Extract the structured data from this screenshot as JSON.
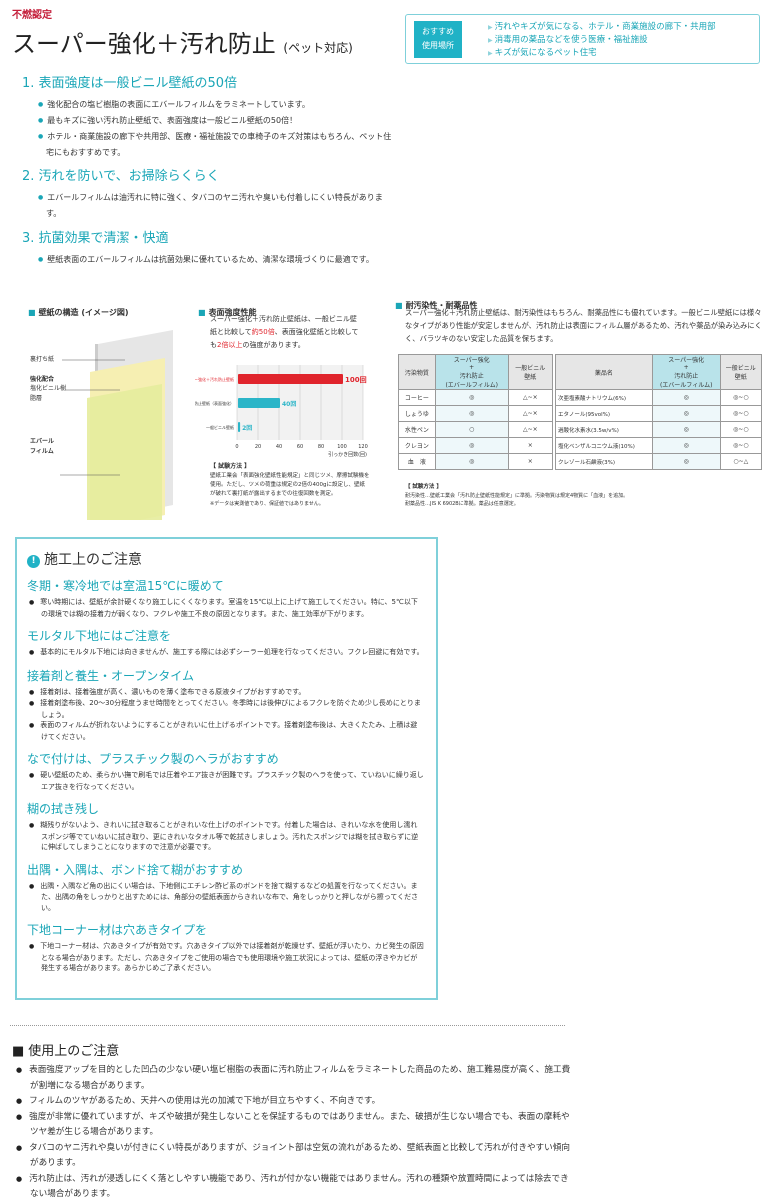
{
  "header": {
    "cert": "不燃認定",
    "title": "スーパー強化＋汚れ防止",
    "title_suffix": "(ペット対応)"
  },
  "recommend": {
    "label_line1": "おすすめ",
    "label_line2": "使用場所",
    "items": [
      "汚れやキズが気になる、ホテル・商業施設の廊下・共用部",
      "消毒用の薬品などを使う医療・福祉施設",
      "キズが気になるペット住宅"
    ]
  },
  "features": [
    {
      "heading": "1.  表面強度は一般ビニル壁紙の50倍",
      "bullets": [
        "強化配合の塩ビ樹脂の表面にエバールフィルムをラミネートしています。",
        "最もキズに強い汚れ防止壁紙で、表面強度は一般ビニル壁紙の50倍！",
        "ホテル・商業施設の廊下や共用部、医療・福祉施設での車椅子のキズ対策はもちろん、ペット住宅にもおすすめです。"
      ]
    },
    {
      "heading": "2.  汚れを防いで、お掃除らくらく",
      "bullets": [
        "エバールフィルムは油汚れに特に強く、タバコのヤニ汚れや臭いも付着しにくい特長があります。"
      ]
    },
    {
      "heading": "3.  抗菌効果で清潔・快適",
      "bullets": [
        "壁紙表面のエバールフィルムは抗菌効果に優れているため、清潔な環境づくりに最適です。"
      ]
    }
  ],
  "structure": {
    "heading": "壁紙の構造 (イメージ図)",
    "layers": [
      {
        "label": "裏打ち紙",
        "accent": ""
      },
      {
        "accent": "強化配合",
        "label": "塩化ビニル樹脂層"
      },
      {
        "accent": "エバールフィルム",
        "label": ""
      }
    ]
  },
  "strength": {
    "heading": "表面強度性能",
    "desc_a": "スーパー強化＋汚れ防止壁紙は、一般ビニル壁紙と比較して",
    "desc_b": "約50倍",
    "desc_c": "、表面強化壁紙と比較しても",
    "desc_d": "2倍以上",
    "desc_e": "の強度があります。",
    "method_title": "【 試験方法 】",
    "method_text": "壁紙工業会「表面強化壁紙性能規定」と同じツメ、摩擦試験機を使用。ただし、ツメの荷重は規定の2倍の400gに設定し、壁紙が破れて裏打紙が露出するまでの往復回数を測定。",
    "note": "※データは実測値であり、保証値ではありません。"
  },
  "chart_data": {
    "type": "bar",
    "orientation": "horizontal",
    "categories": [
      "スーパー強化＋汚れ防止壁紙",
      "汚れ防止壁紙（表面強化）",
      "一般ビニル壁紙"
    ],
    "values": [
      100,
      40,
      2
    ],
    "data_labels": [
      "100回",
      "40回",
      "2回"
    ],
    "xlabel": "引っかき回数(回)",
    "xlim": [
      0,
      120
    ],
    "xticks": [
      0,
      20,
      40,
      60,
      80,
      100,
      120
    ],
    "grid": true,
    "colors": [
      "#e0242c",
      "#2bb5c8",
      "#2bb5c8"
    ]
  },
  "resistance": {
    "heading": "耐汚染性・耐薬品性",
    "desc": "スーパー強化＋汚れ防止壁紙は、耐汚染性はもちろん、耐薬品性にも優れています。一般ビニル壁紙には様々なタイプがあり性能が安定しませんが、汚れ防止は表面にフィルム層があるため、汚れや薬品が染み込みにくく、バラツキのない安定した品質を保ちます。",
    "table1": {
      "headers": [
        "汚染物質",
        "スーパー強化\n+\n汚れ防止\n(エバールフィルム)",
        "一般ビニル\n壁紙"
      ],
      "rows": [
        [
          "コーヒー",
          "◎",
          "△~×"
        ],
        [
          "しょうゆ",
          "◎",
          "△~×"
        ],
        [
          "水性ペン",
          "○",
          "△~×"
        ],
        [
          "クレヨン",
          "◎",
          "×"
        ],
        [
          "血　液",
          "◎",
          "×"
        ]
      ]
    },
    "table2": {
      "headers": [
        "薬品名",
        "スーパー強化\n+\n汚れ防止\n(エバールフィルム)",
        "一般ビニル\n壁紙"
      ],
      "rows": [
        [
          "次亜塩素酸ナトリウム(6%)",
          "◎",
          "◎~○"
        ],
        [
          "エタノール(95vol%)",
          "◎",
          "◎~○"
        ],
        [
          "過酸化水素水(3.5w/v%)",
          "◎",
          "◎~○"
        ],
        [
          "塩化ベンザルコニウム液(10%)",
          "◎",
          "◎~○"
        ],
        [
          "クレゾール石鹸液(3%)",
          "◎",
          "○~△"
        ]
      ]
    },
    "method_title": "【 試験方法 】",
    "method_lines": [
      "耐汚染性…壁紙工業会「汚れ防止壁紙性能規定」に準拠。汚染物質は規定4物質に「血液」を追加。",
      "耐薬品性…JIS K 6902Bに準拠。薬品は任意選定。"
    ]
  },
  "construction": {
    "heading": "施工上のご注意",
    "sections": [
      {
        "title": "冬期・寒冷地では室温15℃に暖めて",
        "items": [
          "寒い時期には、壁紙が余計硬くなり施工しにくくなります。室温を15℃以上に上げて施工してください。特に、5℃以下の環境では糊の接着力が弱くなり、フクレや施工不良の原因となります。また、施工効率が下がります。"
        ]
      },
      {
        "title": "モルタル下地にはご注意を",
        "items": [
          "基本的にモルタル下地には向きませんが、施工する際には必ずシーラー処理を行なってください。フクレ回避に有効です。"
        ]
      },
      {
        "title": "接着剤と養生・オープンタイム",
        "items": [
          "接着剤は、接着強度が高く、濃いものを薄く塗布できる原液タイプがおすすめです。",
          "接着剤塗布後、20～30分程度うませ時間をとってください。冬季時には後伸びによるフクレを防ぐため少し長めにとりましょう。",
          "表面のフィルムが折れないようにすることがきれいに仕上げるポイントです。接着剤塗布後は、大きくたたみ、上積は避けてください。"
        ]
      },
      {
        "title": "なで付けは、プラスチック製のヘラがおすすめ",
        "items": [
          "硬い壁紙のため、柔らかい撫で刷毛では圧着やエア抜きが困難です。プラスチック製のヘラを使って、ていねいに繰り返しエア抜きを行なってください。"
        ]
      },
      {
        "title": "糊の拭き残し",
        "items": [
          "糊残りがないよう、きれいに拭き取ることがきれいな仕上げのポイントです。付着した場合は、きれいな水を使用し濡れスポンジ等でていねいに拭き取り、更にきれいなタオル等で乾拭きしましょう。汚れたスポンジでは糊を拭き取らずに逆に伸ばしてしまうことになりますので注意が必要です。"
        ]
      },
      {
        "title": "出隅・入隅は、ボンド捨て糊がおすすめ",
        "items": [
          "出隅・入隅など角の出にくい場合は、下地側にエチレン酢ビ系のボンドを捨て糊するなどの処置を行なってください。また、出隅の角をしっかりと出すためには、角部分の壁紙表面からきれいな布で、角をしっかりと押しながら擦ってください。"
        ]
      },
      {
        "title": "下地コーナー材は穴あきタイプを",
        "items": [
          "下地コーナー材は、穴あきタイプが有効です。穴あきタイプ以外では接着剤が乾燥せず、壁紙が浮いたり、カビ発生の原因となる場合があります。ただし、穴あきタイプをご使用の場合でも使用環境や施工状況によっては、壁紙の浮きやカビが発生する場合があります。あらかじめご了承ください。"
        ]
      }
    ]
  },
  "usage": {
    "heading": "使用上のご注意",
    "items": [
      "表面強度アップを目的とした凹凸の少ない硬い塩ビ樹脂の表面に汚れ防止フィルムをラミネートした商品のため、施工難易度が高く、施工費が割増になる場合があります。",
      "フィルムのツヤがあるため、天井への使用は光の加減で下地が目立ちやすく、不向きです。",
      "強度が非常に優れていますが、キズや破損が発生しないことを保証するものではありません。また、破損が生じない場合でも、表面の摩耗やツヤ差が生じる場合があります。",
      "タバコのヤニ汚れや臭いが付きにくい特長がありますが、ジョイント部は空気の流れがあるため、壁紙表面と比較して汚れが付きやすい傾向があります。",
      "汚れ防止は、汚れが浸透しにくく落としやすい機能であり、汚れが付かない機能ではありません。汚れの種類や放置時間によっては除去できない場合があります。"
    ]
  },
  "colors": {
    "accent": "#1aa6b7",
    "red": "#e0242c",
    "cert": "#c41e3a"
  }
}
